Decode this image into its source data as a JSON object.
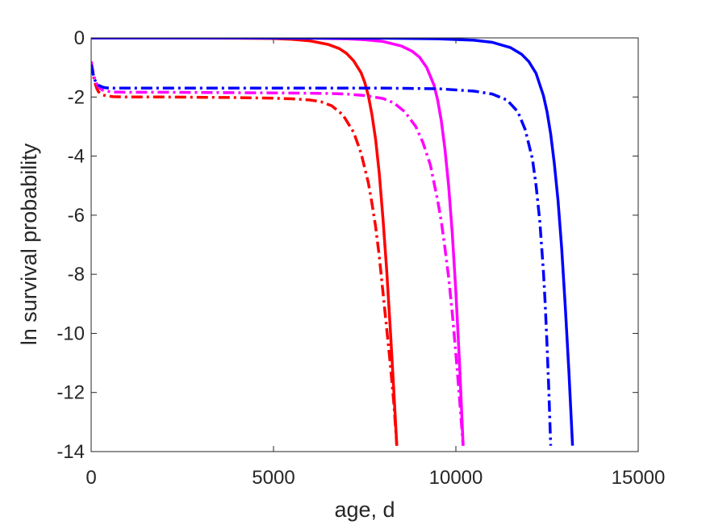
{
  "chart_data": {
    "type": "line",
    "title": "",
    "xlabel": "age, d",
    "ylabel": "ln survival probability",
    "xlim": [
      0,
      15000
    ],
    "ylim": [
      -14,
      0
    ],
    "xticks": [
      0,
      5000,
      10000,
      15000
    ],
    "yticks": [
      0,
      -2,
      -4,
      -6,
      -8,
      -10,
      -12,
      -14
    ],
    "xtick_labels": [
      "0",
      "5000",
      "10000",
      "15000"
    ],
    "ytick_labels": [
      "0",
      "-2",
      "-4",
      "-6",
      "-8",
      "-10",
      "-12",
      "-14"
    ],
    "grid": false,
    "legend": false,
    "series": [
      {
        "color": "#ff0000",
        "style": "solid",
        "x": [
          0,
          2000,
          4000,
          5000,
          5500,
          6000,
          6500,
          6800,
          7000,
          7200,
          7400,
          7500,
          7600,
          7700,
          7800,
          7900,
          8000,
          8100,
          8200,
          8300,
          8380
        ],
        "y": [
          0,
          0,
          -0.01,
          -0.02,
          -0.05,
          -0.1,
          -0.22,
          -0.36,
          -0.52,
          -0.78,
          -1.18,
          -1.5,
          -1.95,
          -2.6,
          -3.45,
          -4.6,
          -6.1,
          -7.8,
          -9.8,
          -12.0,
          -13.8
        ]
      },
      {
        "color": "#ff00ff",
        "style": "solid",
        "x": [
          0,
          3000,
          6000,
          7000,
          7500,
          8000,
          8500,
          8800,
          9000,
          9200,
          9400,
          9500,
          9600,
          9700,
          9800,
          9900,
          10000,
          10100,
          10200
        ],
        "y": [
          0,
          0,
          -0.01,
          -0.03,
          -0.06,
          -0.12,
          -0.27,
          -0.45,
          -0.65,
          -1.0,
          -1.6,
          -2.1,
          -2.8,
          -3.75,
          -5.0,
          -6.6,
          -8.6,
          -11.0,
          -13.8
        ]
      },
      {
        "color": "#0000ff",
        "style": "solid",
        "x": [
          0,
          4000,
          8000,
          9500,
          10500,
          11000,
          11500,
          11800,
          12000,
          12200,
          12400,
          12500,
          12600,
          12700,
          12800,
          12900,
          13000,
          13100,
          13200
        ],
        "y": [
          0,
          0,
          -0.01,
          -0.03,
          -0.08,
          -0.15,
          -0.33,
          -0.55,
          -0.8,
          -1.2,
          -1.95,
          -2.5,
          -3.25,
          -4.25,
          -5.5,
          -7.1,
          -9.1,
          -11.3,
          -13.8
        ]
      },
      {
        "color": "#ff0000",
        "style": "dashdot",
        "x": [
          0,
          50,
          100,
          150,
          200,
          300,
          400,
          600,
          1000,
          2000,
          4000,
          5000,
          5500,
          6000,
          6300,
          6600,
          6900,
          7200,
          7400,
          7600,
          7700,
          7800,
          7900,
          8000,
          8100,
          8200,
          8300,
          8380
        ],
        "y": [
          -0.8,
          -1.2,
          -1.5,
          -1.7,
          -1.82,
          -1.92,
          -1.96,
          -1.99,
          -2.0,
          -2.0,
          -2.02,
          -2.04,
          -2.06,
          -2.1,
          -2.16,
          -2.3,
          -2.6,
          -3.2,
          -3.9,
          -4.9,
          -5.6,
          -6.4,
          -7.4,
          -8.6,
          -9.8,
          -11.0,
          -12.4,
          -13.8
        ]
      },
      {
        "color": "#ff00ff",
        "style": "dashdot",
        "x": [
          0,
          50,
          100,
          150,
          200,
          300,
          400,
          600,
          1000,
          2000,
          5000,
          6500,
          7000,
          7500,
          8000,
          8300,
          8600,
          8900,
          9100,
          9300,
          9500,
          9600,
          9700,
          9800,
          9900,
          10000,
          10100,
          10200
        ],
        "y": [
          -0.8,
          -1.15,
          -1.4,
          -1.55,
          -1.66,
          -1.76,
          -1.8,
          -1.83,
          -1.84,
          -1.84,
          -1.86,
          -1.88,
          -1.9,
          -1.95,
          -2.05,
          -2.2,
          -2.5,
          -3.0,
          -3.55,
          -4.3,
          -5.5,
          -6.2,
          -7.1,
          -8.1,
          -9.3,
          -10.7,
          -12.2,
          -13.8
        ]
      },
      {
        "color": "#0000ff",
        "style": "dashdot",
        "x": [
          0,
          50,
          100,
          150,
          200,
          300,
          400,
          600,
          1000,
          2000,
          5000,
          8000,
          9500,
          10500,
          11000,
          11400,
          11700,
          11900,
          12100,
          12200,
          12300,
          12400,
          12450,
          12500,
          12550,
          12600
        ],
        "y": [
          -0.9,
          -1.2,
          -1.42,
          -1.53,
          -1.6,
          -1.66,
          -1.69,
          -1.7,
          -1.7,
          -1.7,
          -1.7,
          -1.7,
          -1.72,
          -1.8,
          -1.9,
          -2.1,
          -2.5,
          -3.1,
          -4.1,
          -5.0,
          -6.2,
          -7.9,
          -9.0,
          -10.4,
          -12.0,
          -13.8
        ]
      }
    ]
  }
}
